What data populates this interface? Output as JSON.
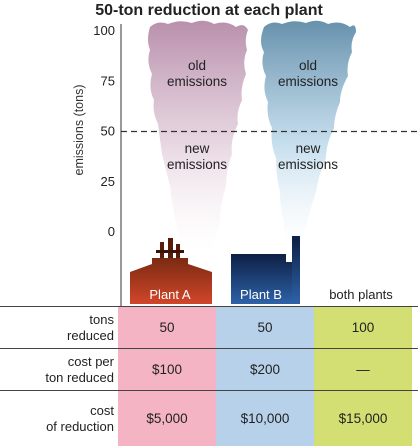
{
  "title": "50-ton reduction at each plant",
  "chart_data": {
    "type": "bar",
    "ylabel": "emissions (tons)",
    "ylim": [
      0,
      100
    ],
    "yticks": [
      0,
      25,
      50,
      75,
      100
    ],
    "reference_line": 50,
    "categories": [
      "Plant A",
      "Plant B"
    ],
    "series": [
      {
        "name": "old emissions",
        "values": [
          50,
          50
        ]
      },
      {
        "name": "new emissions",
        "values": [
          50,
          50
        ]
      }
    ],
    "annotations": {
      "old": "old emissions",
      "new": "new emissions"
    }
  },
  "plants": {
    "a": "Plant A",
    "b": "Plant B",
    "both": "both plants"
  },
  "table": {
    "rows": [
      {
        "label": "tons reduced",
        "a": "50",
        "b": "50",
        "both": "100"
      },
      {
        "label": "cost per ton reduced",
        "a": "$100",
        "b": "$200",
        "both": "—"
      },
      {
        "label": "cost of reduction",
        "a": "$5,000",
        "b": "$10,000",
        "both": "$15,000"
      }
    ]
  },
  "colors": {
    "plant_a_smoke": "#c8a8bd",
    "plant_b_smoke": "#7fa4bd",
    "plant_a_factory": "#b83a1f",
    "plant_b_factory": "#1f3b6e",
    "plant_a_cell": "#f4b4c3",
    "plant_b_cell": "#b7d1eb",
    "both_cell": "#d3df72"
  }
}
